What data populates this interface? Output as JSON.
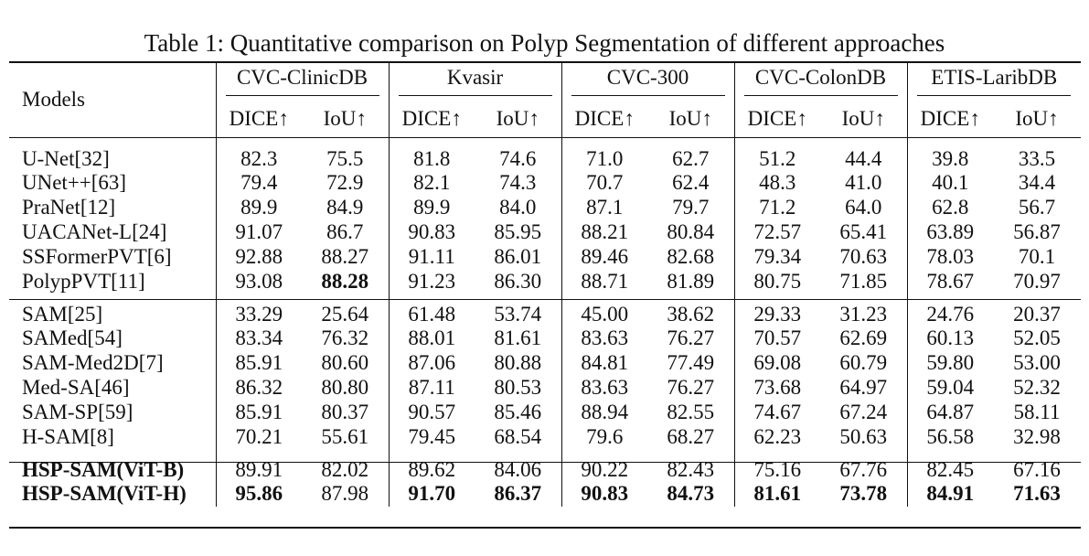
{
  "caption": "Table 1: Quantitative comparison on Polyp Segmentation of different approaches",
  "header": {
    "models_label": "Models",
    "datasets": [
      "CVC-ClinicDB",
      "Kvasir",
      "CVC-300",
      "CVC-ColonDB",
      "ETIS-LaribDB"
    ],
    "dice_label": "DICE↑",
    "iou_label": "IoU↑"
  },
  "groups": [
    {
      "rows": [
        {
          "name": "U-Net[32]",
          "values": [
            "82.3",
            "75.5",
            "81.8",
            "74.6",
            "71.0",
            "62.7",
            "51.2",
            "44.4",
            "39.8",
            "33.5"
          ]
        },
        {
          "name": "UNet++[63]",
          "values": [
            "79.4",
            "72.9",
            "82.1",
            "74.3",
            "70.7",
            "62.4",
            "48.3",
            "41.0",
            "40.1",
            "34.4"
          ]
        },
        {
          "name": "PraNet[12]",
          "values": [
            "89.9",
            "84.9",
            "89.9",
            "84.0",
            "87.1",
            "79.7",
            "71.2",
            "64.0",
            "62.8",
            "56.7"
          ]
        },
        {
          "name": "UACANet-L[24]",
          "values": [
            "91.07",
            "86.7",
            "90.83",
            "85.95",
            "88.21",
            "80.84",
            "72.57",
            "65.41",
            "63.89",
            "56.87"
          ]
        },
        {
          "name": "SSFormerPVT[6]",
          "values": [
            "92.88",
            "88.27",
            "91.11",
            "86.01",
            "89.46",
            "82.68",
            "79.34",
            "70.63",
            "78.03",
            "70.1"
          ]
        },
        {
          "name": "PolypPVT[11]",
          "values": [
            "93.08",
            "88.28",
            "91.23",
            "86.30",
            "88.71",
            "81.89",
            "80.75",
            "71.85",
            "78.67",
            "70.97"
          ],
          "bold": [
            1
          ]
        }
      ]
    },
    {
      "rows": [
        {
          "name": "SAM[25]",
          "values": [
            "33.29",
            "25.64",
            "61.48",
            "53.74",
            "45.00",
            "38.62",
            "29.33",
            "31.23",
            "24.76",
            "20.37"
          ]
        },
        {
          "name": "SAMed[54]",
          "values": [
            "83.34",
            "76.32",
            "88.01",
            "81.61",
            "83.63",
            "76.27",
            "70.57",
            "62.69",
            "60.13",
            "52.05"
          ]
        },
        {
          "name": "SAM-Med2D[7]",
          "values": [
            "85.91",
            "80.60",
            "87.06",
            "80.88",
            "84.81",
            "77.49",
            "69.08",
            "60.79",
            "59.80",
            "53.00"
          ]
        },
        {
          "name": "Med-SA[46]",
          "values": [
            "86.32",
            "80.80",
            "87.11",
            "80.53",
            "83.63",
            "76.27",
            "73.68",
            "64.97",
            "59.04",
            "52.32"
          ]
        },
        {
          "name": "SAM-SP[59]",
          "values": [
            "85.91",
            "80.37",
            "90.57",
            "85.46",
            "88.94",
            "82.55",
            "74.67",
            "67.24",
            "64.87",
            "58.11"
          ]
        },
        {
          "name": "H-SAM[8]",
          "values": [
            "70.21",
            "55.61",
            "79.45",
            "68.54",
            "79.6",
            "68.27",
            "62.23",
            "50.63",
            "56.58",
            "32.98"
          ]
        }
      ]
    },
    {
      "rows": [
        {
          "name": "HSP-SAM(ViT-B)",
          "name_bold": true,
          "values": [
            "89.91",
            "82.02",
            "89.62",
            "84.06",
            "90.22",
            "82.43",
            "75.16",
            "67.76",
            "82.45",
            "67.16"
          ]
        },
        {
          "name": "HSP-SAM(ViT-H)",
          "name_bold": true,
          "values": [
            "95.86",
            "87.98",
            "91.70",
            "86.37",
            "90.83",
            "84.73",
            "81.61",
            "73.78",
            "84.91",
            "71.63"
          ],
          "bold": [
            0,
            2,
            3,
            4,
            5,
            6,
            7,
            8,
            9
          ]
        }
      ]
    }
  ]
}
